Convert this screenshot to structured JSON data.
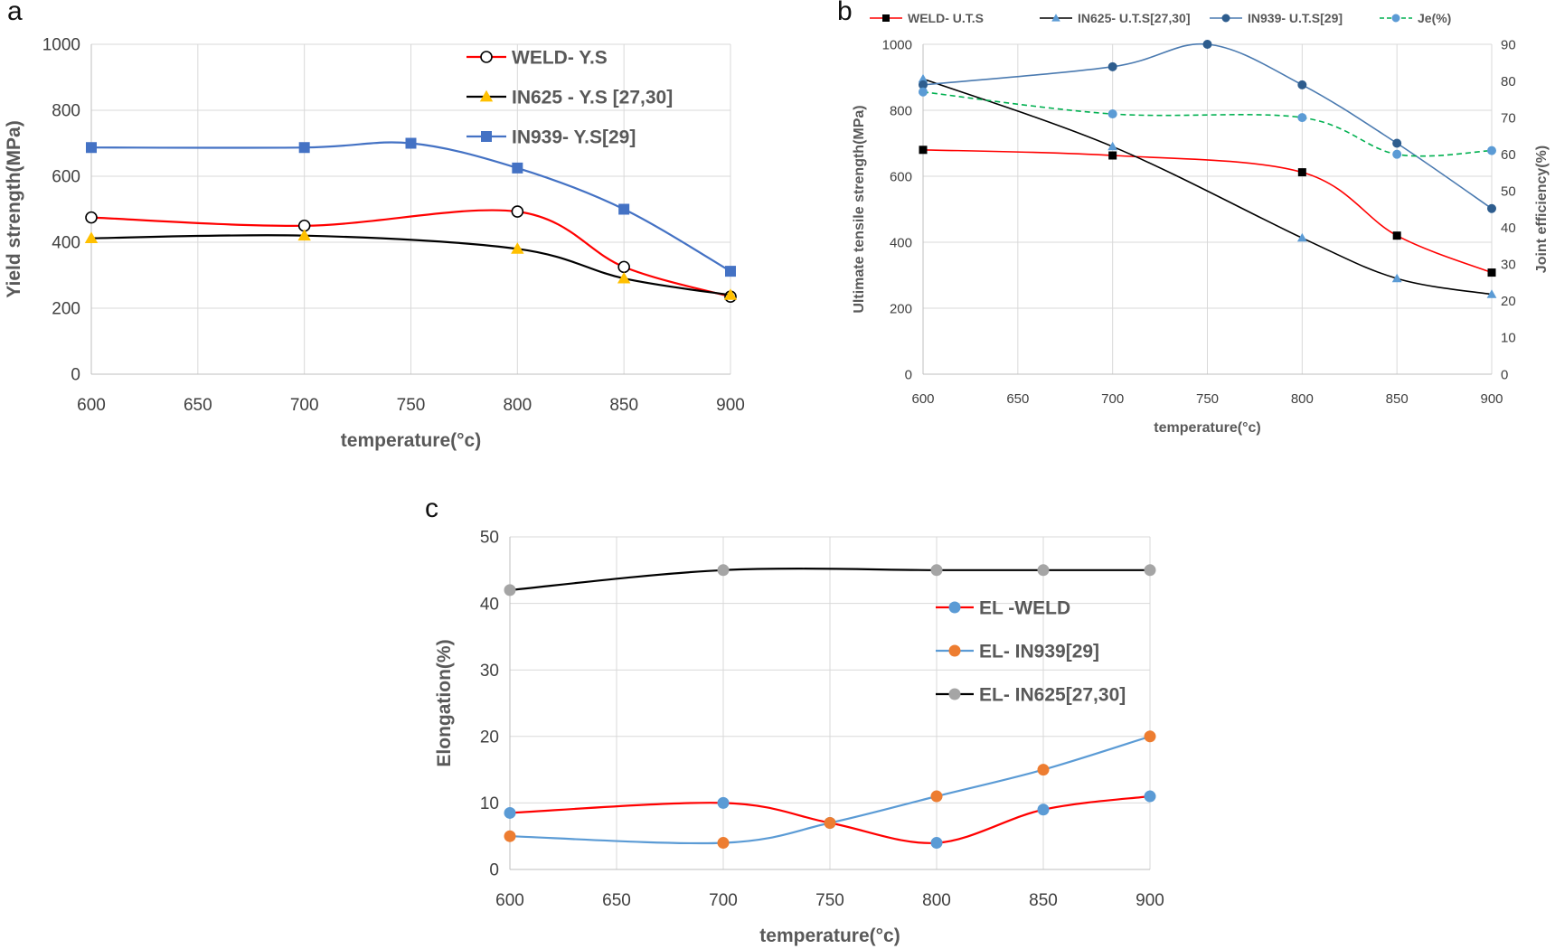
{
  "panels": {
    "a": {
      "letter": "a"
    },
    "b": {
      "letter": "b"
    },
    "c": {
      "letter": "c"
    }
  },
  "chart_data": [
    {
      "id": "a",
      "type": "line",
      "xlabel": "temperature(°c)",
      "ylabel": "Yield strength(MPa)",
      "xlim": [
        600,
        900
      ],
      "ylim": [
        0,
        1000
      ],
      "xticks": [
        600,
        650,
        700,
        750,
        800,
        850,
        900
      ],
      "yticks": [
        0,
        200,
        400,
        600,
        800,
        1000
      ],
      "grid": true,
      "legend_position": "top-right",
      "series": [
        {
          "name": "WELD- Y.S",
          "color": "#ff0000",
          "marker": "open-circle",
          "marker_color": "#000000",
          "smooth": true,
          "x": [
            600,
            700,
            800,
            850,
            900
          ],
          "y": [
            475,
            450,
            493,
            325,
            235
          ]
        },
        {
          "name": "IN625 - Y.S [27,30]",
          "color": "#000000",
          "marker": "triangle",
          "marker_color": "#ffc000",
          "smooth": true,
          "x": [
            600,
            700,
            800,
            850,
            900
          ],
          "y": [
            412,
            420,
            380,
            290,
            240
          ]
        },
        {
          "name": "IN939- Y.S[29]",
          "color": "#4472c4",
          "marker": "square",
          "marker_color": "#4472c4",
          "smooth": true,
          "x": [
            600,
            700,
            750,
            800,
            850,
            900
          ],
          "y": [
            687,
            687,
            700,
            625,
            500,
            312
          ]
        }
      ]
    },
    {
      "id": "b",
      "type": "line",
      "xlabel": "temperature(°c)",
      "ylabel": "Ultimate tensile strength(MPa)",
      "y2label": "Joint efficiency(%)",
      "xlim": [
        600,
        900
      ],
      "ylim": [
        0,
        1000
      ],
      "y2lim": [
        0,
        90
      ],
      "xticks": [
        600,
        650,
        700,
        750,
        800,
        850,
        900
      ],
      "yticks": [
        0,
        200,
        400,
        600,
        800,
        1000
      ],
      "y2ticks": [
        0,
        10,
        20,
        30,
        40,
        50,
        60,
        70,
        80,
        90
      ],
      "grid": true,
      "legend_position": "top",
      "series": [
        {
          "name": "WELD- U.T.S",
          "color": "#ff0000",
          "marker": "square",
          "marker_color": "#000000",
          "smooth": true,
          "axis": "left",
          "x": [
            600,
            700,
            800,
            850,
            900
          ],
          "y": [
            680,
            663,
            612,
            420,
            308
          ]
        },
        {
          "name": "IN625- U.T.S[27,30]",
          "color": "#000000",
          "marker": "triangle",
          "marker_color": "#5b9bd5",
          "smooth": true,
          "axis": "left",
          "x": [
            600,
            700,
            800,
            850,
            900
          ],
          "y": [
            895,
            690,
            413,
            290,
            242
          ]
        },
        {
          "name": "IN939- U.T.S[29]",
          "color": "#4a7ab0",
          "marker": "circle",
          "marker_color": "#2e5d8e",
          "smooth": true,
          "axis": "left",
          "x": [
            600,
            700,
            750,
            800,
            850,
            900
          ],
          "y": [
            877,
            932,
            1000,
            877,
            700,
            502
          ]
        },
        {
          "name": "Je(%)",
          "color": "#00b050",
          "dashed": true,
          "marker": "circle",
          "marker_color": "#5b9bd5",
          "smooth": true,
          "axis": "right",
          "x": [
            600,
            700,
            800,
            850,
            900
          ],
          "y": [
            77,
            71,
            70,
            60,
            61
          ]
        }
      ]
    },
    {
      "id": "c",
      "type": "line",
      "xlabel": "temperature(°c)",
      "ylabel": "Elongation(%)",
      "xlim": [
        600,
        900
      ],
      "ylim": [
        0,
        50
      ],
      "xticks": [
        600,
        650,
        700,
        750,
        800,
        850,
        900
      ],
      "yticks": [
        0,
        10,
        20,
        30,
        40,
        50
      ],
      "grid": true,
      "legend_position": "right",
      "series": [
        {
          "name": "EL -WELD",
          "color": "#ff0000",
          "marker": "circle",
          "marker_color": "#5b9bd5",
          "smooth": true,
          "x": [
            600,
            700,
            750,
            800,
            850,
            900
          ],
          "y": [
            8.5,
            10,
            7,
            4,
            9,
            11
          ]
        },
        {
          "name": "EL- IN939[29]",
          "color": "#5b9bd5",
          "marker": "circle",
          "marker_color": "#ed7d31",
          "smooth": true,
          "x": [
            600,
            700,
            750,
            800,
            850,
            900
          ],
          "y": [
            5,
            4,
            7,
            11,
            15,
            20
          ]
        },
        {
          "name": "EL- IN625[27,30]",
          "color": "#000000",
          "marker": "circle",
          "marker_color": "#a5a5a5",
          "smooth": true,
          "x": [
            600,
            700,
            800,
            850,
            900
          ],
          "y": [
            42,
            45,
            45,
            45,
            45
          ]
        }
      ]
    }
  ]
}
